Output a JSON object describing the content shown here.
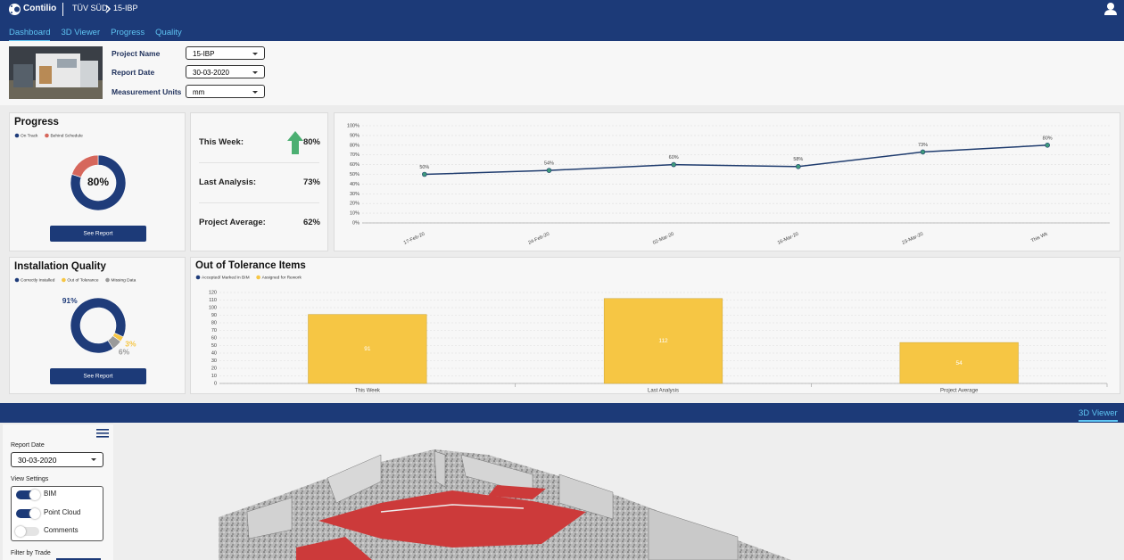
{
  "header": {
    "brand": "Contilio",
    "breadcrumb": [
      "TÜV SÜD",
      "15-IBP"
    ]
  },
  "nav": {
    "tabs": [
      "Dashboard",
      "3D Viewer",
      "Progress",
      "Quality"
    ],
    "active": 0
  },
  "filters": [
    {
      "label": "Project Name",
      "value": "15-IBP"
    },
    {
      "label": "Report Date",
      "value": "30-03-2020"
    },
    {
      "label": "Measurement Units",
      "value": "mm"
    }
  ],
  "stats": [
    {
      "label": "This Week:",
      "value": "80%"
    },
    {
      "label": "Last Analysis:",
      "value": "73%"
    },
    {
      "label": "Project Average:",
      "value": "62%"
    }
  ],
  "chart_data": [
    {
      "type": "donut",
      "title": "Progress",
      "categories": [
        "On Track",
        "Behind Schedule"
      ],
      "values": [
        80,
        20
      ],
      "colors": [
        "#1f3c7a",
        "#d6675c"
      ],
      "center_label": "80%",
      "button": "See Report"
    },
    {
      "type": "line",
      "categories": [
        "17-Feb-20",
        "24-Feb-20",
        "02-Mar-20",
        "16-Mar-20",
        "23-Mar-20",
        "This Wk"
      ],
      "values": [
        50,
        54,
        60,
        58,
        73,
        80
      ],
      "value_labels": [
        "50%",
        "54%",
        "60%",
        "58%",
        "73%",
        "80%"
      ],
      "color": "#1f3c6e",
      "marker_color": "#3e9a7b",
      "ylim": [
        0,
        100
      ],
      "yticks": [
        {
          "value": 0,
          "label": "0%"
        },
        {
          "value": 10,
          "label": "10%"
        },
        {
          "value": 20,
          "label": "20%"
        },
        {
          "value": 30,
          "label": "30%"
        },
        {
          "value": 40,
          "label": "40%"
        },
        {
          "value": 50,
          "label": "50%"
        },
        {
          "value": 60,
          "label": "60%"
        },
        {
          "value": 70,
          "label": "70%"
        },
        {
          "value": 80,
          "label": "80%"
        },
        {
          "value": 90,
          "label": "90%"
        },
        {
          "value": 100,
          "label": "100%"
        }
      ],
      "grid": true
    },
    {
      "type": "donut",
      "title": "Installation Quality",
      "categories": [
        "Correctly Installed",
        "Out of Tolerance",
        "Missing Data"
      ],
      "values": [
        91,
        3,
        6
      ],
      "value_labels": [
        "91%",
        "3%",
        "6%"
      ],
      "colors": [
        "#1f3c7a",
        "#f6c644",
        "#9a9a9a"
      ],
      "button": "See Report"
    },
    {
      "type": "bar",
      "title": "Out of Tolerance Items",
      "categories": [
        "This Week",
        "Last Analysis",
        "Project Average"
      ],
      "series": [
        {
          "name": "Accepted/ Marked in BIM",
          "color": "#1f3c7a",
          "values": [
            0,
            0,
            0
          ]
        },
        {
          "name": "Assigned for Rework",
          "color": "#f6c644",
          "values": [
            91,
            112,
            54
          ]
        }
      ],
      "ylim": [
        0,
        120
      ],
      "yticks": [
        0,
        10,
        20,
        30,
        40,
        50,
        60,
        70,
        80,
        90,
        100,
        110,
        120
      ],
      "grid": true
    }
  ],
  "viewer": {
    "tab": "3D Viewer",
    "report_date_label": "Report Date",
    "report_date": "30-03-2020",
    "view_settings_label": "View Settings",
    "toggles": [
      {
        "label": "BIM",
        "on": true
      },
      {
        "label": "Point Cloud",
        "on": true
      },
      {
        "label": "Comments",
        "on": false
      }
    ],
    "filter_label": "Filter by Trade"
  }
}
